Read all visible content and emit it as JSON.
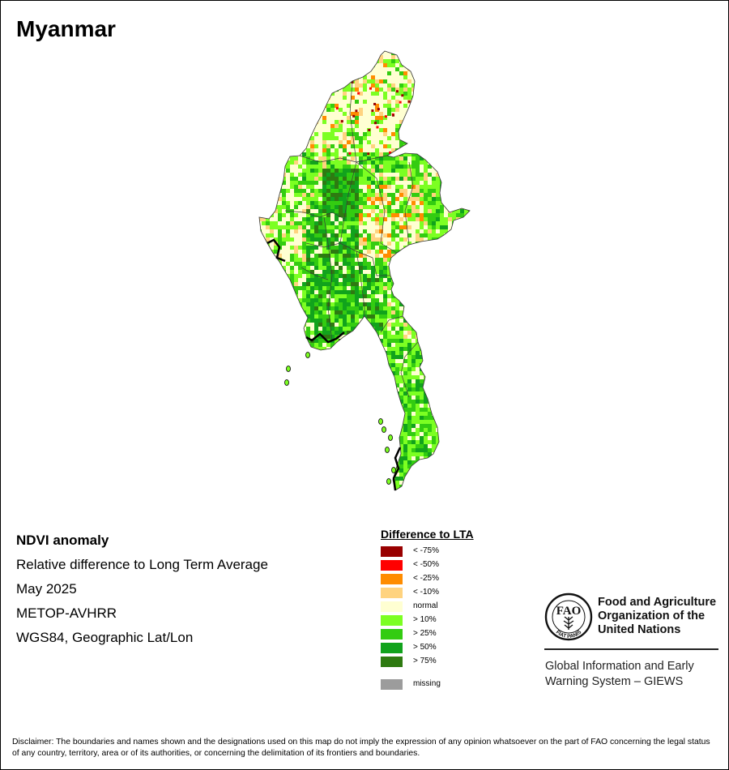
{
  "title": "Myanmar",
  "info": {
    "product": "NDVI anomaly",
    "description": "Relative difference to Long Term Average",
    "period": "May 2025",
    "sensor": "METOP-AVHRR",
    "projection": "WGS84, Geographic Lat/Lon"
  },
  "legend": {
    "title": "Difference to LTA",
    "items": [
      {
        "label": "< -75%",
        "color": "#990000"
      },
      {
        "label": "< -50%",
        "color": "#ff0000"
      },
      {
        "label": "< -25%",
        "color": "#ff8c00"
      },
      {
        "label": "< -10%",
        "color": "#ffd37f"
      },
      {
        "label": "normal",
        "color": "#ffffd2"
      },
      {
        "label": "> 10%",
        "color": "#7cff22"
      },
      {
        "label": "> 25%",
        "color": "#33cc11"
      },
      {
        "label": "> 50%",
        "color": "#11a31c"
      },
      {
        "label": "> 75%",
        "color": "#2e7a11"
      }
    ],
    "missing": {
      "label": "missing",
      "color": "#9c9c9c"
    }
  },
  "logo": {
    "letters": "FAO",
    "motto": "FIAT PANIS",
    "organization": "Food and Agriculture Organization of the United Nations",
    "system": "Global Information and Early Warning System – GIEWS"
  },
  "disclaimer": "Disclaimer: The boundaries and names shown and the designations used on this map do not imply the expression of any opinion whatsoever on the part of FAO concerning the legal status of any country, territory, area or of its authorities, or concerning the delimitation of its frontiers and boundaries."
}
